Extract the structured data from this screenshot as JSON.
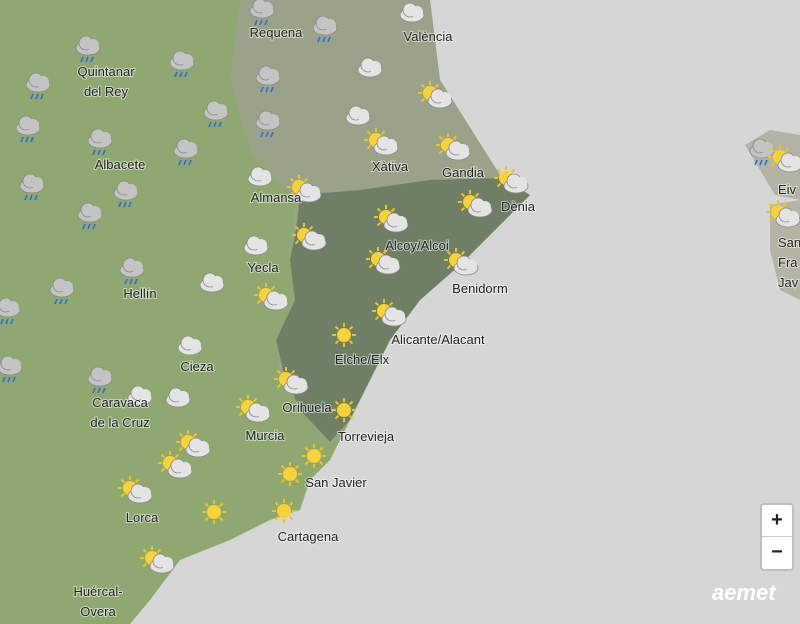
{
  "cities": [
    {
      "lines": [
        "Requena"
      ]
    },
    {
      "lines": [
        "València"
      ]
    },
    {
      "lines": [
        "Quintanar",
        "del Rey"
      ]
    },
    {
      "lines": [
        "Albacete"
      ]
    },
    {
      "lines": [
        "Xàtiva"
      ]
    },
    {
      "lines": [
        "Gandia"
      ]
    },
    {
      "lines": [
        "Almansa"
      ]
    },
    {
      "lines": [
        "Dènia"
      ]
    },
    {
      "lines": [
        "Alcoy/Alcoi"
      ]
    },
    {
      "lines": [
        "Yecla"
      ]
    },
    {
      "lines": [
        "Hellín"
      ]
    },
    {
      "lines": [
        "Benidorm"
      ]
    },
    {
      "lines": [
        "Alicante/Alacant"
      ]
    },
    {
      "lines": [
        "Elche/Elx"
      ]
    },
    {
      "lines": [
        "Cieza"
      ]
    },
    {
      "lines": [
        "Caravaca",
        "de la Cruz"
      ]
    },
    {
      "lines": [
        "Orihuela"
      ]
    },
    {
      "lines": [
        "Murcia"
      ]
    },
    {
      "lines": [
        "Torrevieja"
      ]
    },
    {
      "lines": [
        "San Javier"
      ]
    },
    {
      "lines": [
        "Lorca"
      ]
    },
    {
      "lines": [
        "Cartagena"
      ]
    },
    {
      "lines": [
        "Huércal-",
        "Overa"
      ]
    },
    {
      "lines": [
        "Eiv"
      ]
    },
    {
      "lines": [
        "San",
        "Fra",
        "Jav"
      ]
    }
  ],
  "zoom": {
    "in": "+",
    "out": "−"
  },
  "logo": "aemet"
}
